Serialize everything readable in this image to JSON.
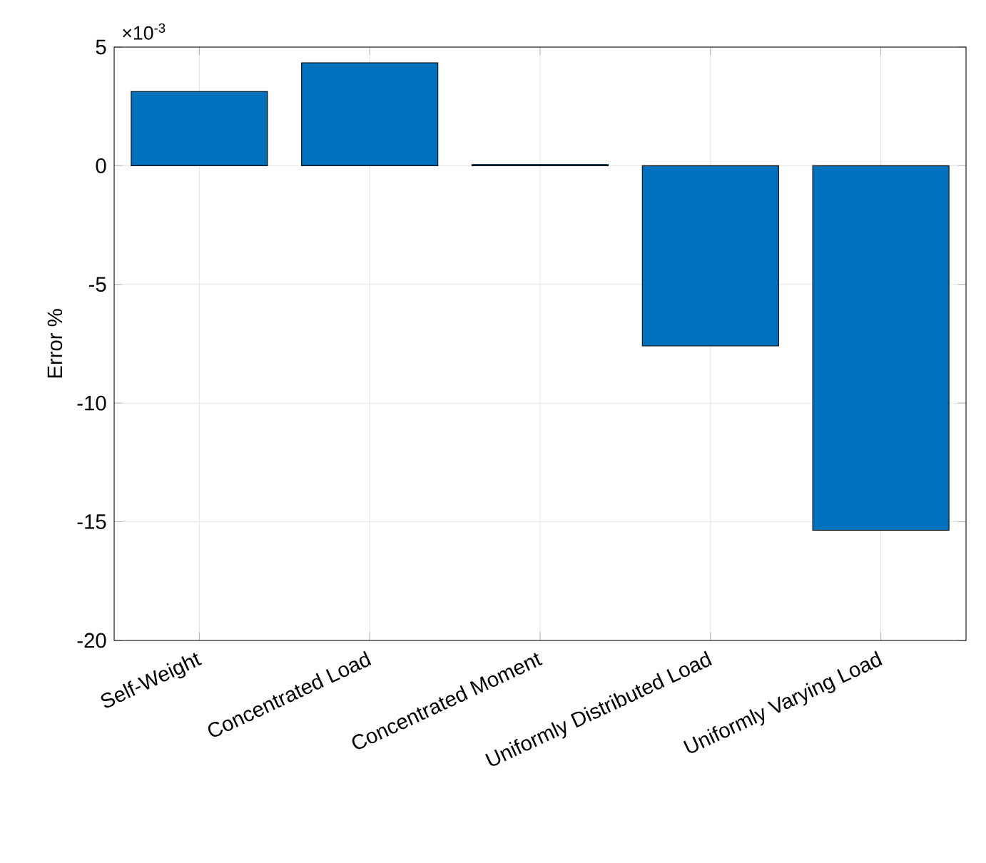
{
  "chart_data": {
    "type": "bar",
    "categories": [
      "Self-Weight",
      "Concentrated Load",
      "Concentrated Moment",
      "Uniformly Distributed Load",
      "Uniformly Varying Load"
    ],
    "values": [
      3.13,
      4.34,
      0.05,
      -7.59,
      -15.36
    ],
    "color": "#0072bd",
    "ylabel": "Error %",
    "ylim": [
      -20,
      5
    ],
    "yticks": [
      -20,
      -15,
      -10,
      -5,
      0,
      5
    ],
    "grid": true,
    "annotations": [
      "×10$^{-3}$"
    ]
  }
}
